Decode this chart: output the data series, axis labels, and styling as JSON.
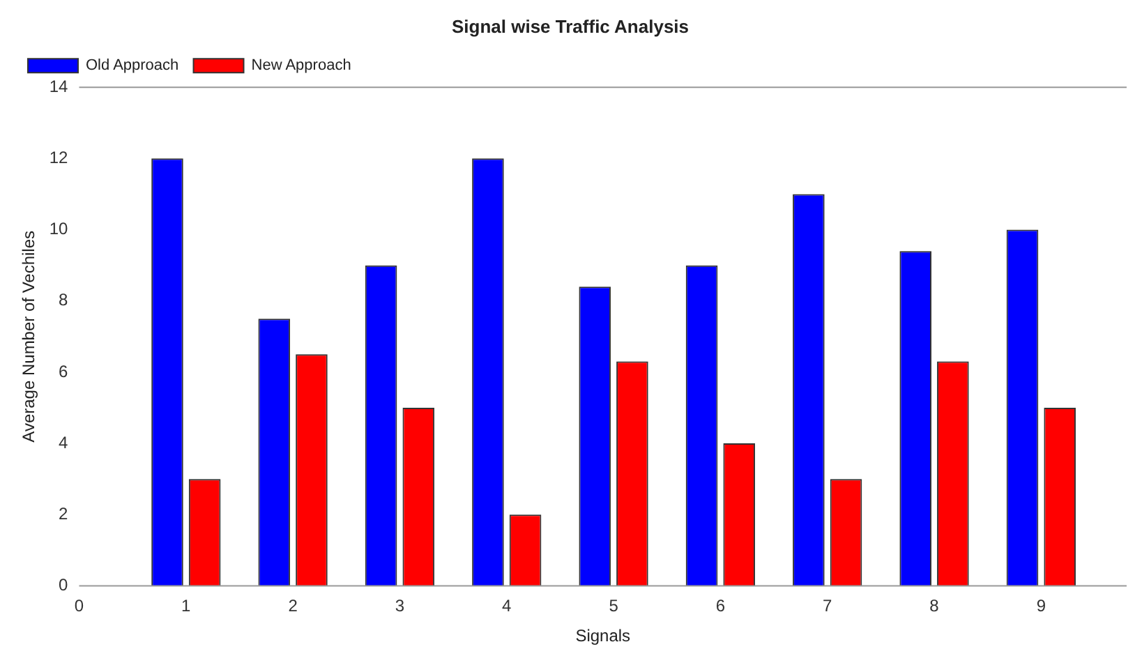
{
  "chart_data": {
    "type": "bar",
    "title": "Signal wise Traffic Analysis",
    "xlabel": "Signals",
    "ylabel": "Average Number of Vechiles",
    "x": [
      1,
      2,
      3,
      4,
      5,
      6,
      7,
      8,
      9
    ],
    "series": [
      {
        "name": "Old Approach",
        "color": "#0000ff",
        "values": [
          12,
          7.5,
          9,
          12,
          8.4,
          9,
          11,
          9.4,
          10
        ]
      },
      {
        "name": "New Approach",
        "color": "#ff0000",
        "values": [
          3,
          6.5,
          5,
          2,
          6.3,
          4,
          3,
          6.3,
          5
        ]
      }
    ],
    "xlim": [
      0,
      9.8
    ],
    "xticks": [
      0,
      1,
      2,
      3,
      4,
      5,
      6,
      7,
      8,
      9
    ],
    "ylim": [
      0,
      14
    ],
    "yticks": [
      0,
      2,
      4,
      6,
      8,
      10,
      12,
      14
    ],
    "grid": false,
    "legend": "top left"
  }
}
